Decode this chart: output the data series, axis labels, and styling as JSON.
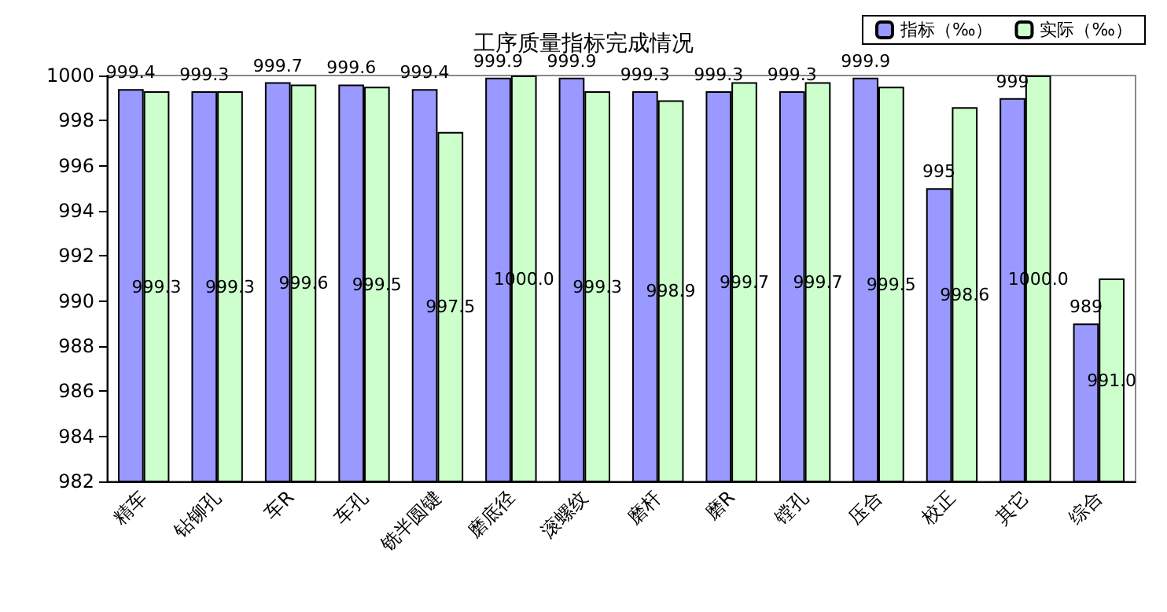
{
  "chart_data": {
    "type": "bar",
    "title": "工序质量指标完成情况",
    "categories": [
      "精车",
      "钻铆孔",
      "车R",
      "车孔",
      "铣半圆键",
      "磨底径",
      "滚螺纹",
      "磨杆",
      "磨R",
      "镗孔",
      "压合",
      "校正",
      "其它",
      "综合"
    ],
    "series": [
      {
        "name": "指标（‰）",
        "color": "#9999ff",
        "values": [
          999.4,
          999.3,
          999.7,
          999.6,
          999.4,
          999.9,
          999.9,
          999.3,
          999.3,
          999.3,
          999.9,
          995,
          999,
          989
        ],
        "value_labels": [
          "999.4",
          "999.3",
          "999.7",
          "999.6",
          "999.4",
          "999.9",
          "999.9",
          "999.3",
          "999.3",
          "999.3",
          "999.9",
          "995",
          "999",
          "989"
        ]
      },
      {
        "name": "实际（‰）",
        "color": "#ccffcc",
        "values": [
          999.3,
          999.3,
          999.6,
          999.5,
          997.5,
          1000.0,
          999.3,
          998.9,
          999.7,
          999.7,
          999.5,
          998.6,
          1000.0,
          991.0
        ],
        "value_labels": [
          "999.3",
          "999.3",
          "999.6",
          "999.5",
          "997.5",
          "1000.0",
          "999.3",
          "998.9",
          "999.7",
          "999.7",
          "999.5",
          "998.6",
          "1000.0",
          "991.0"
        ]
      }
    ],
    "ylim": [
      982,
      1000
    ],
    "yticks": [
      982,
      984,
      986,
      988,
      990,
      992,
      994,
      996,
      998,
      1000
    ],
    "grid": false,
    "legend": "top right"
  }
}
